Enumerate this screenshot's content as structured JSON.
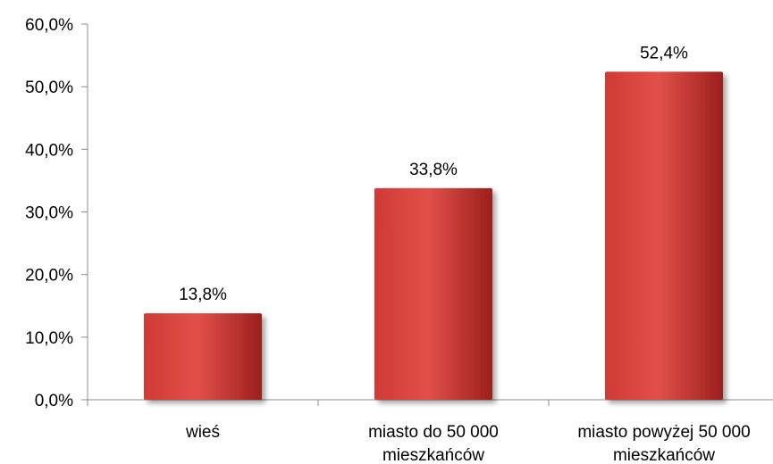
{
  "chart_data": {
    "type": "bar",
    "categories": [
      [
        "wieś"
      ],
      [
        "miasto do 50 000",
        "mieszkańców"
      ],
      [
        "miasto powyżej 50 000",
        "mieszkańców"
      ]
    ],
    "values": [
      13.8,
      33.8,
      52.4
    ],
    "data_labels": [
      "13,8%",
      "33,8%",
      "52,4%"
    ],
    "ylim": [
      0,
      60
    ],
    "yticks": [
      0,
      10,
      20,
      30,
      40,
      50,
      60
    ],
    "ytick_labels": [
      "0,0%",
      "10,0%",
      "20,0%",
      "30,0%",
      "40,0%",
      "50,0%",
      "60,0%"
    ],
    "title": "",
    "xlabel": "",
    "ylabel": "",
    "grid": false,
    "legend": "none",
    "colors": {
      "bar_light": "#e2504a",
      "bar_mid": "#cf3a35",
      "bar_dark": "#9c1f1c",
      "axis": "#8c8c8c"
    }
  }
}
